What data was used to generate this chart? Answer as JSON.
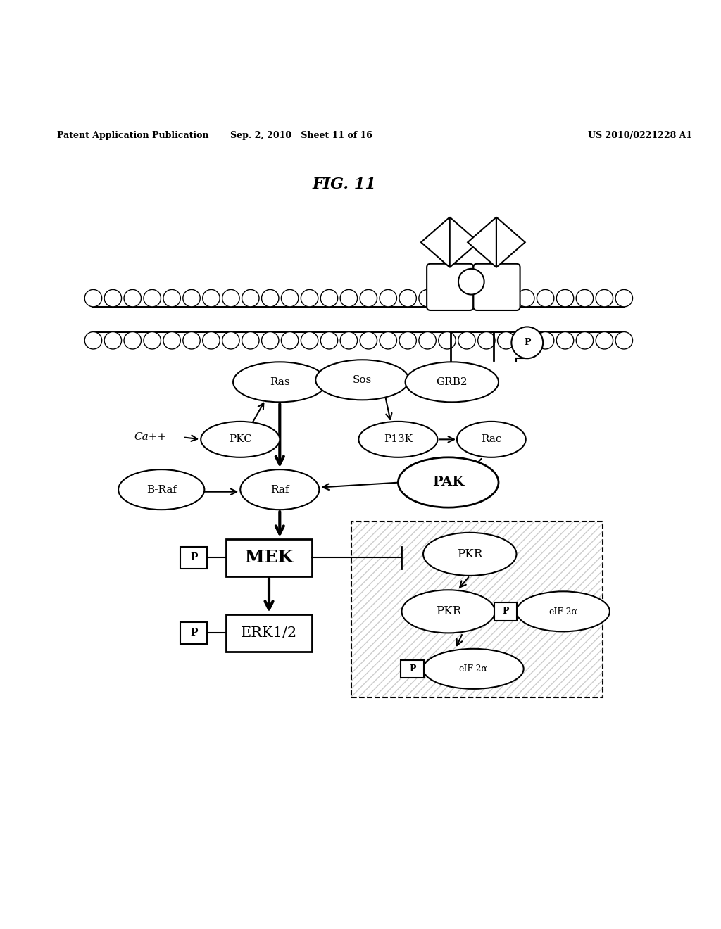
{
  "title": "FIG. 11",
  "header_left": "Patent Application Publication",
  "header_center": "Sep. 2, 2010   Sheet 11 of 16",
  "header_right": "US 2010/0221228 A1",
  "background": "#ffffff"
}
